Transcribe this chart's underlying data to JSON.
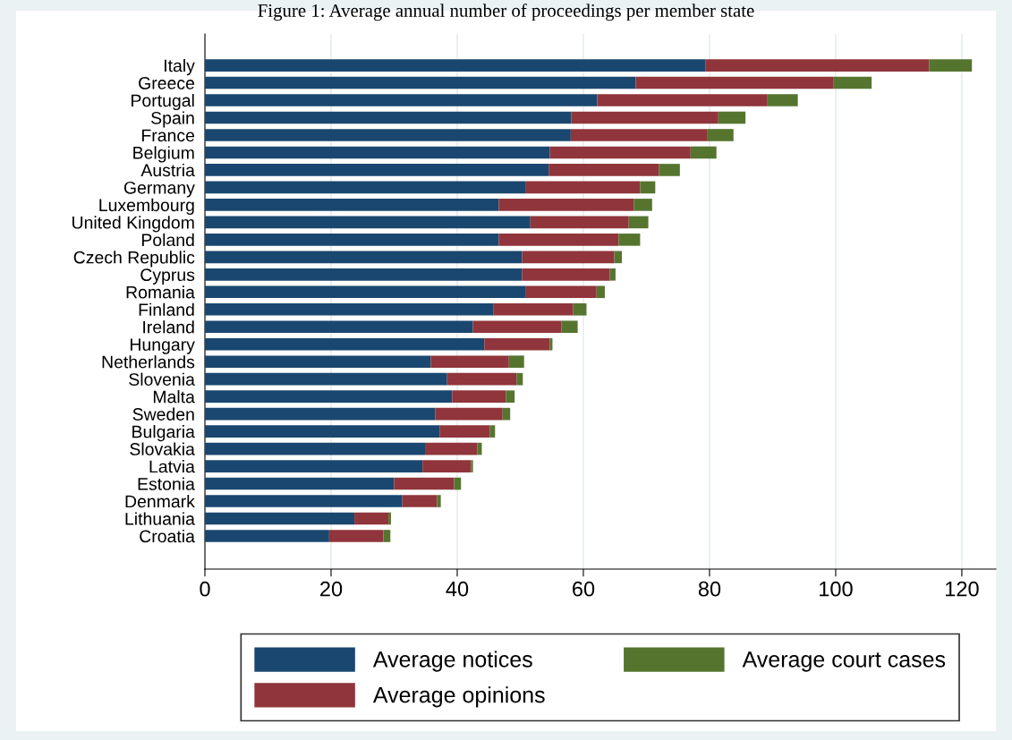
{
  "chart_data": {
    "type": "bar",
    "orientation": "horizontal",
    "stacked": true,
    "title": "Figure 1: Average annual number of proceedings per member state",
    "categories": [
      "Italy",
      "Greece",
      "Portugal",
      "Spain",
      "France",
      "Belgium",
      "Austria",
      "Germany",
      "Luxembourg",
      "United Kingdom",
      "Poland",
      "Czech Republic",
      "Cyprus",
      "Romania",
      "Finland",
      "Ireland",
      "Hungary",
      "Netherlands",
      "Slovenia",
      "Malta",
      "Sweden",
      "Bulgaria",
      "Slovakia",
      "Latvia",
      "Estonia",
      "Denmark",
      "Lithuania",
      "Croatia"
    ],
    "series": [
      {
        "name": "Average notices",
        "color": "#1a476f",
        "values": [
          79.4,
          68.3,
          62.2,
          58.1,
          58.0,
          54.7,
          54.5,
          50.9,
          46.6,
          51.6,
          46.6,
          50.3,
          50.3,
          50.9,
          45.7,
          42.5,
          44.3,
          35.8,
          38.4,
          39.2,
          36.5,
          37.2,
          34.9,
          34.5,
          30.0,
          31.3,
          23.7,
          19.7
        ]
      },
      {
        "name": "Average opinions",
        "color": "#90353b",
        "values": [
          35.4,
          31.3,
          27.0,
          23.3,
          21.7,
          22.3,
          17.5,
          18.1,
          21.4,
          15.6,
          19.0,
          14.6,
          13.9,
          11.2,
          12.7,
          14.0,
          10.4,
          12.4,
          11.0,
          8.5,
          10.7,
          8.0,
          8.3,
          7.7,
          9.5,
          5.5,
          5.4,
          8.6
        ]
      },
      {
        "name": "Average court cases",
        "color": "#55752f",
        "values": [
          6.8,
          6.1,
          4.8,
          4.3,
          4.1,
          4.1,
          3.3,
          2.4,
          2.9,
          3.1,
          3.4,
          1.2,
          0.9,
          1.3,
          2.1,
          2.6,
          0.4,
          2.4,
          1.0,
          1.4,
          1.2,
          0.8,
          0.7,
          0.3,
          1.1,
          0.6,
          0.4,
          1.1
        ]
      }
    ],
    "xlim": [
      0,
      125.4
    ],
    "xticks": [
      0,
      20,
      40,
      60,
      80,
      100,
      120
    ],
    "grid": "x",
    "legend": "bottom"
  }
}
